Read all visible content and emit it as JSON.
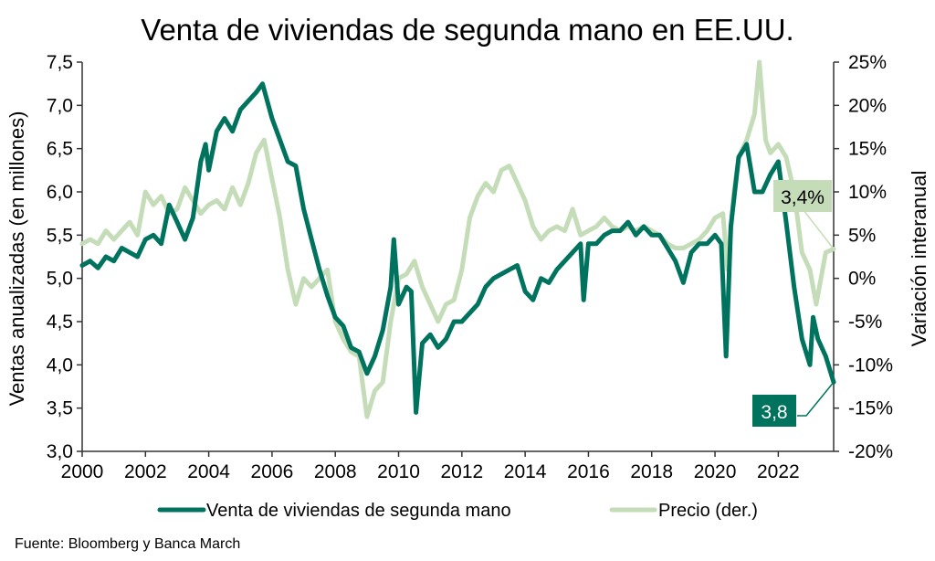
{
  "chart_data": {
    "type": "line",
    "title": "Venta de viviendas de segunda mano en EE.UU.",
    "xlabel": "",
    "ylabel": "Ventas anualizadas (en millones)",
    "y2label": "Variación interanual",
    "xlim": [
      2000,
      2023.75
    ],
    "ylim": [
      3.0,
      7.5
    ],
    "y2lim": [
      -20,
      25
    ],
    "x_ticks": [
      "2000",
      "2002",
      "2004",
      "2006",
      "2008",
      "2010",
      "2012",
      "2014",
      "2016",
      "2018",
      "2020",
      "2022"
    ],
    "y_ticks": [
      "3,0",
      "3,5",
      "4,0",
      "4,5",
      "5,0",
      "5,5",
      "6,0",
      "6,5",
      "7,0",
      "7,5"
    ],
    "y2_ticks": [
      "-20%",
      "-15%",
      "-10%",
      "-5%",
      "0%",
      "5%",
      "10%",
      "15%",
      "20%",
      "25%"
    ],
    "grid": false,
    "legend_position": "bottom",
    "colors": {
      "sales": "#00735F",
      "price": "#C5DCB8",
      "axis": "#333333"
    },
    "series": [
      {
        "name": "Venta de viviendas de segunda mano",
        "axis": "left",
        "x": [
          2000.0,
          2000.25,
          2000.5,
          2000.75,
          2001.0,
          2001.25,
          2001.5,
          2001.75,
          2002.0,
          2002.25,
          2002.5,
          2002.75,
          2003.0,
          2003.25,
          2003.5,
          2003.75,
          2003.9,
          2004.0,
          2004.25,
          2004.5,
          2004.75,
          2005.0,
          2005.25,
          2005.5,
          2005.7,
          2006.0,
          2006.25,
          2006.5,
          2006.75,
          2007.0,
          2007.25,
          2007.5,
          2007.75,
          2008.0,
          2008.25,
          2008.5,
          2008.75,
          2009.0,
          2009.25,
          2009.5,
          2009.75,
          2009.85,
          2010.0,
          2010.25,
          2010.4,
          2010.55,
          2010.75,
          2011.0,
          2011.25,
          2011.5,
          2011.75,
          2012.0,
          2012.25,
          2012.5,
          2012.75,
          2013.0,
          2013.25,
          2013.5,
          2013.75,
          2014.0,
          2014.25,
          2014.5,
          2014.75,
          2015.0,
          2015.25,
          2015.5,
          2015.75,
          2015.85,
          2016.0,
          2016.25,
          2016.5,
          2016.75,
          2017.0,
          2017.25,
          2017.5,
          2017.75,
          2018.0,
          2018.25,
          2018.5,
          2018.75,
          2019.0,
          2019.25,
          2019.5,
          2019.75,
          2020.0,
          2020.2,
          2020.35,
          2020.5,
          2020.75,
          2021.0,
          2021.25,
          2021.5,
          2021.75,
          2022.0,
          2022.25,
          2022.5,
          2022.75,
          2023.0,
          2023.1,
          2023.25,
          2023.5,
          2023.75
        ],
        "values": [
          5.15,
          5.2,
          5.12,
          5.25,
          5.2,
          5.35,
          5.3,
          5.25,
          5.45,
          5.5,
          5.4,
          5.85,
          5.65,
          5.45,
          5.7,
          6.35,
          6.55,
          6.25,
          6.7,
          6.85,
          6.7,
          6.95,
          7.05,
          7.15,
          7.25,
          6.85,
          6.6,
          6.35,
          6.3,
          5.8,
          5.45,
          5.1,
          4.8,
          4.55,
          4.45,
          4.2,
          4.15,
          3.9,
          4.1,
          4.4,
          4.9,
          5.45,
          4.7,
          4.9,
          4.85,
          3.45,
          4.25,
          4.35,
          4.2,
          4.3,
          4.5,
          4.5,
          4.6,
          4.7,
          4.9,
          5.0,
          5.05,
          5.1,
          5.15,
          4.85,
          4.75,
          5.0,
          4.95,
          5.1,
          5.2,
          5.3,
          5.4,
          4.75,
          5.4,
          5.4,
          5.5,
          5.55,
          5.55,
          5.65,
          5.5,
          5.6,
          5.5,
          5.5,
          5.35,
          5.2,
          4.95,
          5.3,
          5.4,
          5.4,
          5.5,
          5.4,
          4.1,
          5.6,
          6.4,
          6.55,
          6.0,
          6.0,
          6.2,
          6.35,
          5.65,
          4.9,
          4.3,
          4.0,
          4.55,
          4.3,
          4.1,
          3.8
        ]
      },
      {
        "name": "Precio (der.)",
        "axis": "right",
        "x": [
          2000.0,
          2000.25,
          2000.5,
          2000.75,
          2001.0,
          2001.25,
          2001.5,
          2001.75,
          2002.0,
          2002.25,
          2002.5,
          2002.75,
          2003.0,
          2003.25,
          2003.5,
          2003.75,
          2004.0,
          2004.25,
          2004.5,
          2004.75,
          2005.0,
          2005.25,
          2005.5,
          2005.75,
          2006.0,
          2006.25,
          2006.5,
          2006.75,
          2007.0,
          2007.25,
          2007.5,
          2007.75,
          2008.0,
          2008.25,
          2008.5,
          2008.75,
          2009.0,
          2009.25,
          2009.5,
          2009.75,
          2010.0,
          2010.25,
          2010.5,
          2010.75,
          2011.0,
          2011.25,
          2011.5,
          2011.75,
          2012.0,
          2012.25,
          2012.5,
          2012.75,
          2013.0,
          2013.25,
          2013.5,
          2013.75,
          2014.0,
          2014.25,
          2014.5,
          2014.75,
          2015.0,
          2015.25,
          2015.5,
          2015.75,
          2016.0,
          2016.25,
          2016.5,
          2016.75,
          2017.0,
          2017.25,
          2017.5,
          2017.75,
          2018.0,
          2018.25,
          2018.5,
          2018.75,
          2019.0,
          2019.25,
          2019.5,
          2019.75,
          2020.0,
          2020.25,
          2020.4,
          2020.6,
          2020.75,
          2021.0,
          2021.25,
          2021.4,
          2021.6,
          2021.75,
          2022.0,
          2022.25,
          2022.5,
          2022.75,
          2023.0,
          2023.2,
          2023.5,
          2023.75
        ],
        "values": [
          4,
          4.5,
          4,
          5.5,
          4.5,
          5.5,
          6.5,
          5,
          10,
          8.5,
          9.5,
          7.5,
          8,
          10.5,
          9,
          7.5,
          8.5,
          9,
          8,
          10.5,
          8.5,
          11,
          14.5,
          16,
          11.5,
          7,
          1,
          -3,
          0,
          -1,
          0,
          1,
          -5,
          -7,
          -8.5,
          -9,
          -16,
          -13,
          -12,
          -5,
          0,
          0.5,
          2,
          -1,
          -3,
          -5,
          -3,
          -2.5,
          1,
          7,
          9.5,
          11,
          10,
          12.5,
          13,
          11,
          9,
          6,
          4.5,
          5.5,
          6,
          5.5,
          8,
          5,
          5.5,
          6,
          7,
          6,
          5.5,
          6,
          5.5,
          6,
          5.5,
          5,
          4,
          3.5,
          3.5,
          4,
          4.5,
          5.5,
          7,
          7.5,
          1,
          10,
          14,
          16,
          19,
          25,
          16,
          14.5,
          15.5,
          14,
          10,
          3,
          1,
          -3,
          3,
          3.4
        ]
      }
    ],
    "annotations": [
      {
        "label": "3,4%",
        "series": "Precio (der.)",
        "x": 2023.75,
        "value": 3.4
      },
      {
        "label": "3,8",
        "series": "Venta de viviendas de segunda mano",
        "x": 2023.75,
        "value": 3.8
      }
    ]
  },
  "legend": {
    "items": [
      {
        "label": "Venta de viviendas de segunda mano"
      },
      {
        "label": "Precio (der.)"
      }
    ]
  },
  "source": "Fuente: Bloomberg y Banca March"
}
